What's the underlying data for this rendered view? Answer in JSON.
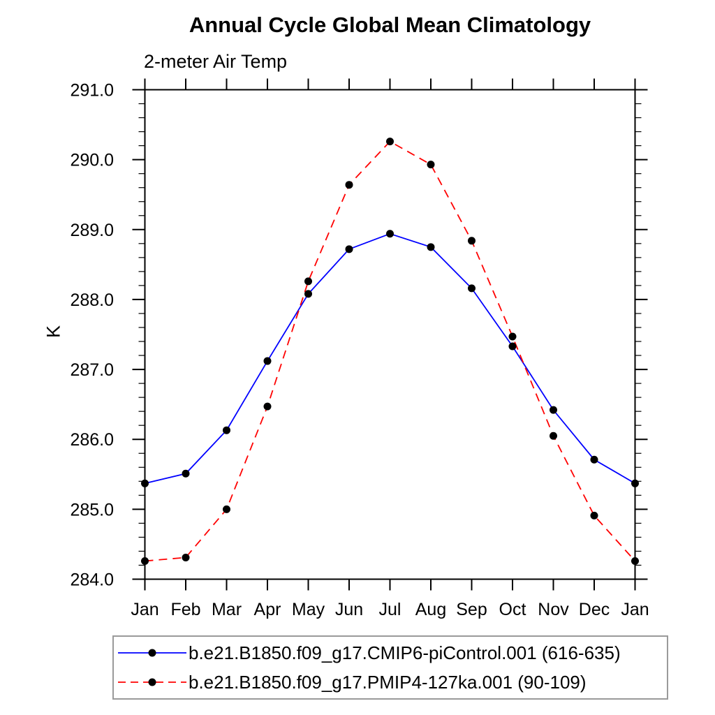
{
  "chart_data": {
    "type": "line",
    "title": "Annual Cycle Global Mean Climatology",
    "subtitle": "2-meter Air Temp",
    "xlabel": "",
    "ylabel": "K",
    "x_tick_labels": [
      "Jan",
      "Feb",
      "Mar",
      "Apr",
      "May",
      "Jun",
      "Jul",
      "Aug",
      "Sep",
      "Oct",
      "Nov",
      "Dec",
      "Jan"
    ],
    "ylim": [
      284.0,
      291.0
    ],
    "y_major_ticks": [
      284.0,
      285.0,
      286.0,
      287.0,
      288.0,
      289.0,
      290.0,
      291.0
    ],
    "y_tick_labels": [
      "284.0",
      "285.0",
      "286.0",
      "287.0",
      "288.0",
      "289.0",
      "290.0",
      "291.0"
    ],
    "y_minor_step": 0.2,
    "grid": false,
    "legend_position": "bottom",
    "axis_color": "#000000",
    "marker_color": "#000000",
    "series": [
      {
        "name": "b.e21.B1850.f09_g17.CMIP6-piControl.001 (616-635)",
        "color": "#0000ff",
        "style": "solid",
        "marker": "filled-circle",
        "values": [
          285.37,
          285.51,
          286.13,
          287.12,
          288.08,
          288.72,
          288.94,
          288.75,
          288.16,
          287.33,
          286.42,
          285.71,
          285.37
        ]
      },
      {
        "name": "b.e21.B1850.f09_g17.PMIP4-127ka.001 (90-109)",
        "color": "#ff0000",
        "style": "dashed",
        "marker": "filled-circle",
        "values": [
          284.26,
          284.31,
          285.0,
          286.47,
          288.26,
          289.64,
          290.26,
          289.93,
          288.84,
          287.47,
          286.05,
          284.91,
          284.26
        ]
      }
    ]
  }
}
